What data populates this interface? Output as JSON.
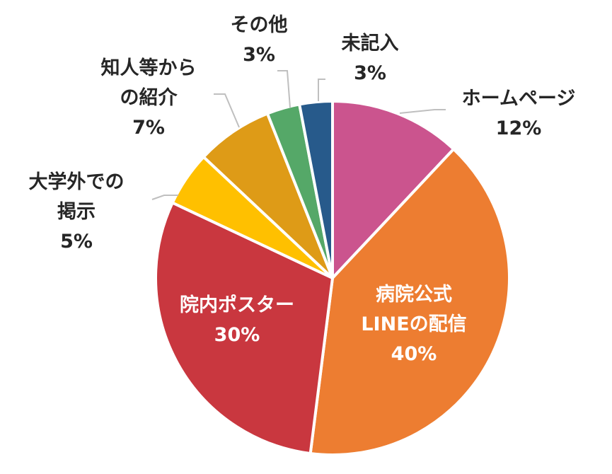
{
  "chart_data": {
    "type": "pie",
    "title": "",
    "start_angle_deg": 0,
    "direction": "clockwise",
    "slices": [
      {
        "label_lines": [
          "ホームページ"
        ],
        "percent_text": "12%",
        "value": 12,
        "color": "#cb548e",
        "label_color": "dark"
      },
      {
        "label_lines": [
          "病院公式",
          "LINEの配信"
        ],
        "percent_text": "40%",
        "value": 40,
        "color": "#ed7d31",
        "label_color": "light"
      },
      {
        "label_lines": [
          "院内ポスター"
        ],
        "percent_text": "30%",
        "value": 30,
        "color": "#c9373f",
        "label_color": "light"
      },
      {
        "label_lines": [
          "大学外での",
          "掲示"
        ],
        "percent_text": "5%",
        "value": 5,
        "color": "#ffc000",
        "label_color": "dark"
      },
      {
        "label_lines": [
          "知人等から",
          "の紹介"
        ],
        "percent_text": "7%",
        "value": 7,
        "color": "#de9b17",
        "label_color": "dark"
      },
      {
        "label_lines": [
          "その他"
        ],
        "percent_text": "3%",
        "value": 3,
        "color": "#55a868",
        "label_color": "dark"
      },
      {
        "label_lines": [
          "未記入"
        ],
        "percent_text": "3%",
        "value": 3,
        "color": "#275a8b",
        "label_color": "dark"
      }
    ]
  }
}
